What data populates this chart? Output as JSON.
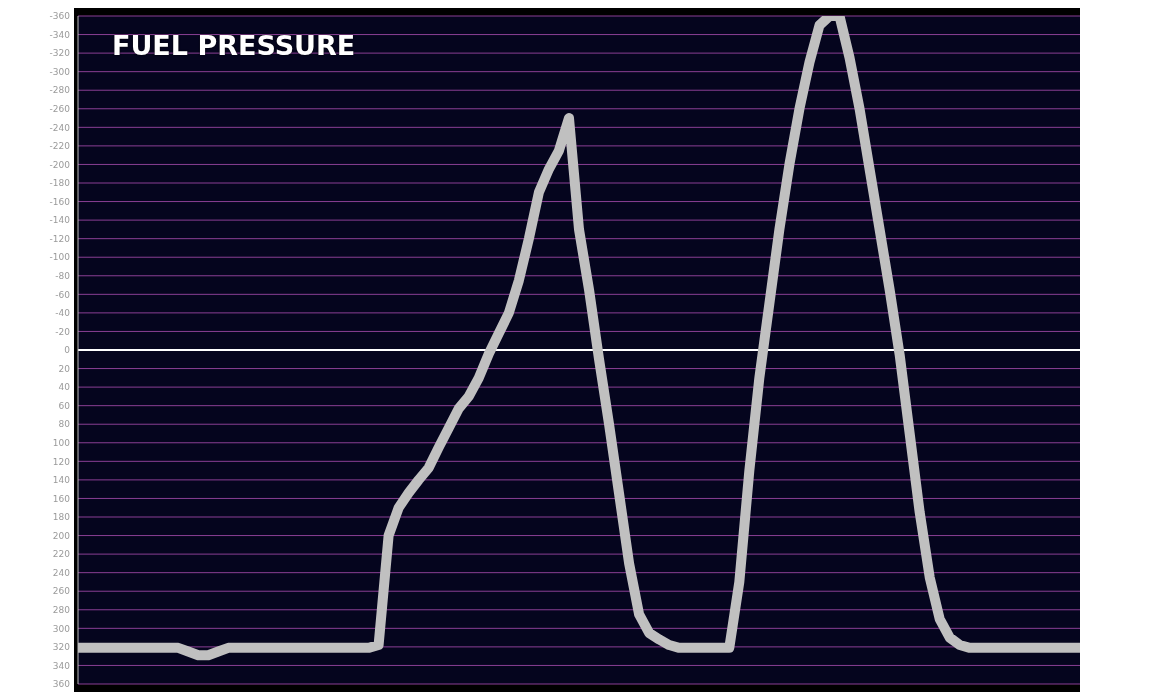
{
  "chart_data": {
    "type": "line",
    "title": "FUEL PRESSURE",
    "categories": [
      null,
      null,
      null,
      null,
      null,
      null,
      null,
      null,
      null,
      null,
      null,
      null,
      null,
      null,
      null,
      null,
      null,
      null,
      null,
      null,
      null,
      null,
      null,
      null,
      null,
      null,
      null,
      null,
      null,
      null,
      null,
      null,
      null,
      null,
      null,
      null,
      null,
      null,
      null,
      null,
      null,
      null,
      null,
      null,
      null,
      null,
      null,
      null,
      null,
      null,
      null,
      null,
      null,
      null,
      null,
      null,
      null,
      null,
      null,
      null,
      null,
      null,
      null,
      null,
      null,
      null,
      null,
      null,
      null,
      null,
      null,
      null,
      null,
      null,
      null,
      null,
      null,
      null,
      null,
      null,
      null,
      null,
      null,
      null,
      null,
      null,
      null,
      null,
      null,
      null,
      null,
      null,
      null,
      null,
      null,
      null,
      null,
      null,
      null,
      null,
      null
    ],
    "series": [
      {
        "color": "#c0c0c0",
        "values": [
          321,
          321,
          321,
          321,
          321,
          321,
          321,
          321,
          321,
          321,
          321,
          325,
          329,
          329,
          325,
          321,
          321,
          321,
          321,
          321,
          321,
          321,
          321,
          321,
          321,
          321,
          321,
          321,
          321,
          321,
          318,
          200,
          170,
          154,
          140,
          127,
          105,
          84,
          63,
          50,
          30,
          4,
          -18,
          -40,
          -75,
          -120,
          -170,
          -195,
          -215,
          -250,
          -130,
          -65,
          10,
          80,
          155,
          230,
          285,
          305,
          312,
          318,
          321,
          321,
          321,
          321,
          321,
          321,
          250,
          130,
          30,
          -50,
          -130,
          -200,
          -260,
          -310,
          -350,
          -360,
          -360,
          -315,
          -260,
          -195,
          -130,
          -65,
          5,
          90,
          175,
          245,
          290,
          310,
          318,
          321,
          321,
          321,
          321,
          321,
          321,
          321,
          321,
          321,
          321,
          321,
          321
        ]
      }
    ],
    "ylim": [
      360,
      -360
    ],
    "yticks": [
      -360,
      -340,
      -320,
      -300,
      -280,
      -260,
      -240,
      -220,
      -200,
      -180,
      -160,
      -140,
      -120,
      -100,
      -80,
      -60,
      -40,
      -20,
      0,
      20,
      40,
      60,
      80,
      100,
      120,
      140,
      160,
      180,
      200,
      220,
      240,
      260,
      280,
      300,
      320,
      340,
      360
    ],
    "ref_lines": [
      {
        "axis": "y",
        "value": 0,
        "color": "#ffffff"
      }
    ],
    "grid": "y",
    "tick_labels": "y",
    "marker": "none",
    "line_style": "solid",
    "legend": false
  }
}
